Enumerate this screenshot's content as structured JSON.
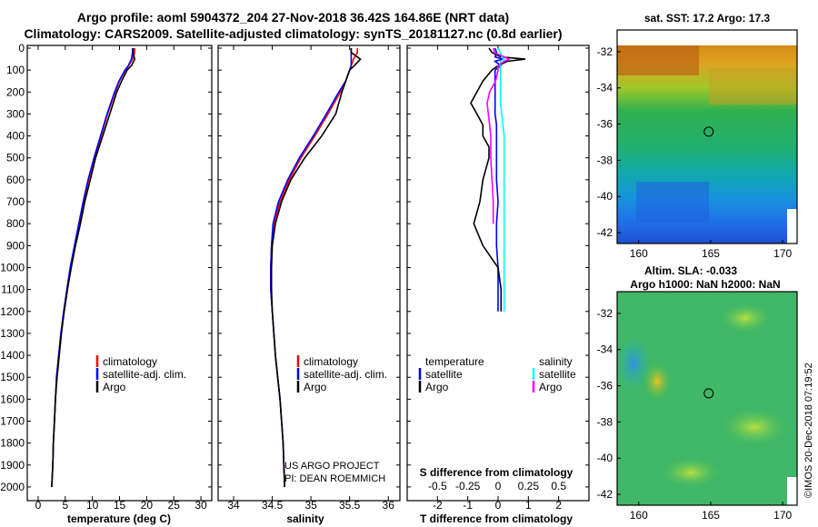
{
  "title_line1": "Argo profile: aoml 5904372_204 27-Nov-2018 36.42S 164.86E (NRT data)",
  "title_line2": "Climatology: CARS2009. Satellite-adjusted climatology: synTS_20181127.nc (0.8d earlier)",
  "colors": {
    "climatology": "#ff0000",
    "satellite": "#0000ff",
    "argo": "#000000",
    "sat_salinity": "#00ffff",
    "argo_salinity": "#ff00ff"
  },
  "chart_data": [
    {
      "type": "line",
      "name": "temperature",
      "xlabel": "temperature (deg C)",
      "ylabel": "depth",
      "xlim": [
        -2,
        32
      ],
      "ylim": [
        0,
        2050
      ],
      "xticks": [
        "0",
        "5",
        "10",
        "15",
        "20",
        "25",
        "30"
      ],
      "yticks": [
        "0",
        "100",
        "200",
        "300",
        "400",
        "500",
        "600",
        "700",
        "800",
        "900",
        "1000",
        "1100",
        "1200",
        "1300",
        "1400",
        "1500",
        "1600",
        "1700",
        "1800",
        "1900",
        "2000"
      ],
      "depth": [
        0,
        20,
        50,
        80,
        100,
        150,
        200,
        300,
        400,
        500,
        600,
        700,
        800,
        900,
        1000,
        1100,
        1200,
        1300,
        1400,
        1500,
        1600,
        1700,
        1800,
        1900,
        2000
      ],
      "series": [
        {
          "name": "climatology",
          "color_key": "climatology",
          "values": [
            17.8,
            17.8,
            17.4,
            16.7,
            16.1,
            15.0,
            14.2,
            12.8,
            11.6,
            10.4,
            9.3,
            8.4,
            7.6,
            6.8,
            6.0,
            5.4,
            4.8,
            4.2,
            3.8,
            3.4,
            3.2,
            3.0,
            2.8,
            2.7,
            2.5
          ]
        },
        {
          "name": "satellite-adj. clim.",
          "color_key": "satellite",
          "values": [
            17.4,
            17.4,
            17.2,
            16.6,
            16.0,
            14.9,
            14.1,
            12.7,
            11.5,
            10.3,
            9.2,
            8.3,
            7.5,
            6.7,
            5.9,
            5.3,
            4.7,
            4.2,
            3.8,
            3.4,
            3.2,
            3.0,
            2.8,
            2.7,
            2.5
          ]
        },
        {
          "name": "Argo",
          "color_key": "argo",
          "values": [
            17.5,
            17.5,
            17.8,
            17.2,
            16.4,
            15.4,
            14.5,
            13.2,
            11.9,
            10.6,
            9.6,
            8.6,
            7.8,
            6.9,
            6.1,
            5.4,
            4.8,
            4.3,
            3.9,
            3.5,
            3.2,
            3.0,
            2.8,
            2.7,
            2.5
          ]
        }
      ],
      "legend": [
        "climatology",
        "satellite-adj. clim.",
        "Argo"
      ]
    },
    {
      "type": "line",
      "name": "salinity",
      "xlabel": "salinity",
      "xlim": [
        33.8,
        36.15
      ],
      "xticks": [
        "34",
        "34.5",
        "35",
        "35.5",
        "36"
      ],
      "depth": [
        0,
        20,
        50,
        80,
        100,
        150,
        200,
        300,
        400,
        500,
        600,
        700,
        800,
        900,
        1000,
        1100,
        1200,
        1300,
        1400,
        1500,
        1600,
        1700,
        1800,
        1900,
        2000
      ],
      "series": [
        {
          "name": "climatology",
          "color_key": "climatology",
          "values": [
            35.6,
            35.6,
            35.55,
            35.52,
            35.5,
            35.45,
            35.38,
            35.22,
            35.05,
            34.87,
            34.72,
            34.6,
            34.52,
            34.49,
            34.48,
            34.48,
            34.5,
            34.52,
            34.54,
            34.57,
            34.6,
            34.62,
            34.64,
            34.65,
            34.66
          ]
        },
        {
          "name": "satellite-adj. clim.",
          "color_key": "satellite",
          "values": [
            35.52,
            35.52,
            35.52,
            35.52,
            35.5,
            35.45,
            35.36,
            35.2,
            35.03,
            34.85,
            34.7,
            34.58,
            34.51,
            34.49,
            34.48,
            34.48,
            34.5,
            34.52,
            34.54,
            34.57,
            34.6,
            34.62,
            34.64,
            34.65,
            34.66
          ]
        },
        {
          "name": "Argo",
          "color_key": "argo",
          "values": [
            35.52,
            35.52,
            35.64,
            35.56,
            35.5,
            35.45,
            35.4,
            35.32,
            35.14,
            34.92,
            34.74,
            34.62,
            34.54,
            34.5,
            34.49,
            34.49,
            34.5,
            34.52,
            34.54,
            34.57,
            34.6,
            34.62,
            34.64,
            34.65,
            34.66
          ]
        }
      ],
      "legend": [
        "climatology",
        "satellite-adj. clim.",
        "Argo"
      ],
      "credit_line1": "US ARGO PROJECT",
      "credit_line2": "PI: DEAN ROEMMICH"
    },
    {
      "type": "line",
      "name": "difference",
      "xlabel": "T difference from climatology",
      "xlabel_top": "S difference from climatology",
      "xlim": [
        -3,
        3
      ],
      "xticks": [
        "-2",
        "-1",
        "0",
        "1",
        "2"
      ],
      "sticks": [
        "-0.5",
        "-0.25",
        "0",
        "0.25",
        "0.5"
      ],
      "depth": [
        0,
        20,
        40,
        50,
        60,
        80,
        100,
        150,
        200,
        250,
        300,
        350,
        400,
        450,
        500,
        600,
        700,
        800,
        900,
        1000,
        1100,
        1200
      ],
      "series": [
        {
          "name": "temperature satellite",
          "color_key": "satellite",
          "values": [
            -0.1,
            -0.05,
            -0.1,
            0.15,
            -0.1,
            0.1,
            -0.1,
            -0.1,
            -0.1,
            -0.1,
            -0.1,
            -0.05,
            -0.05,
            -0.05,
            -0.05,
            -0.05,
            0,
            -0.05,
            -0.05,
            0,
            0,
            0
          ]
        },
        {
          "name": "temperature Argo",
          "color_key": "argo",
          "values": [
            -0.3,
            -0.2,
            0.1,
            0.9,
            0.3,
            0,
            -0.2,
            -0.5,
            -0.7,
            -0.9,
            -0.7,
            -0.5,
            -0.5,
            -0.3,
            -0.3,
            -0.5,
            -0.6,
            -0.8,
            -0.5,
            0,
            0.1,
            0.1
          ]
        },
        {
          "name": "salinity satellite",
          "color_key": "sat_salinity",
          "values": [
            0,
            0.02,
            0.03,
            0.05,
            0.02,
            0.02,
            0.02,
            0.02,
            0.02,
            0.02,
            0.03,
            0.04,
            0.05,
            0.05,
            0.05,
            0.05,
            0.05,
            0.05,
            0.05,
            0.05,
            0.05,
            0.05
          ]
        },
        {
          "name": "salinity Argo",
          "color_key": "argo_salinity",
          "values": [
            -0.04,
            -0.03,
            0.05,
            0.09,
            0.05,
            0,
            0,
            -0.02,
            -0.07,
            -0.09,
            -0.08,
            -0.07,
            -0.06,
            -0.06,
            -0.06,
            -0.05,
            -0.04,
            -0.04,
            null,
            null,
            null,
            null
          ]
        }
      ],
      "legend_left_title": "temperature",
      "legend_right_title": "salinity",
      "legend_left": [
        "satellite",
        "Argo"
      ],
      "legend_right": [
        "satellite",
        "Argo"
      ]
    },
    {
      "type": "heatmap",
      "name": "sst_map",
      "title": "sat. SST: 17.2 Argo: 17.3",
      "xticks": [
        "160",
        "165",
        "170"
      ],
      "yticks": [
        "-32",
        "-34",
        "-36",
        "-38",
        "-40",
        "-42"
      ],
      "xlim": [
        158.5,
        171
      ],
      "ylim": [
        -42.6,
        -30.8
      ],
      "marker": {
        "lon": 164.86,
        "lat": -36.42
      }
    },
    {
      "type": "heatmap",
      "name": "sla_map",
      "title_line1": "Altim. SLA: -0.033",
      "title_line2": "Argo h1000: NaN h2000: NaN",
      "xticks": [
        "160",
        "165",
        "170"
      ],
      "yticks": [
        "-32",
        "-34",
        "-36",
        "-38",
        "-40",
        "-42"
      ],
      "xlim": [
        158.5,
        171
      ],
      "ylim": [
        -42.6,
        -30.8
      ],
      "marker": {
        "lon": 164.86,
        "lat": -36.42
      }
    }
  ],
  "stamp": "©IMOS 20-Dec-2018 07:19:52"
}
